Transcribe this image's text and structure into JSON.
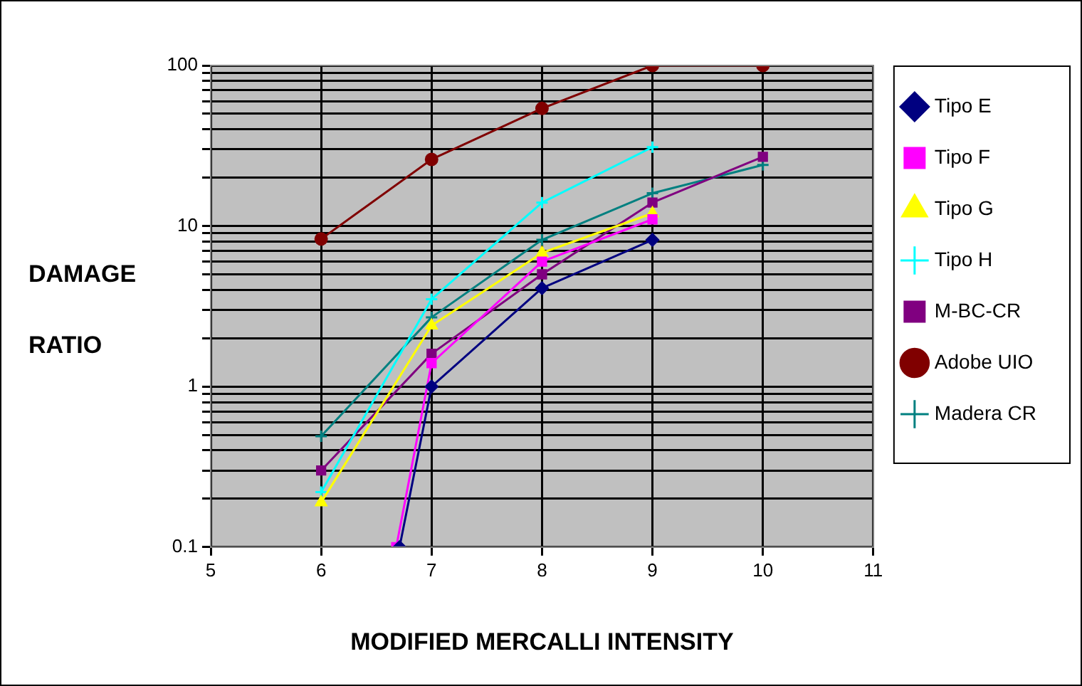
{
  "chart_data": {
    "type": "line",
    "xlabel": "MODIFIED MERCALLI INTENSITY",
    "ylabel": "DAMAGE RATIO",
    "x": [
      6,
      7,
      8,
      9,
      10
    ],
    "xlim": [
      5,
      11
    ],
    "xticks": [
      5,
      6,
      7,
      8,
      9,
      10,
      11
    ],
    "ylim": [
      0.1,
      100
    ],
    "log": true,
    "yticks": [
      0.1,
      {
        "value": 0.2,
        "label": null
      },
      {
        "value": 0.3,
        "label": null
      },
      {
        "value": 0.4,
        "label": null
      },
      {
        "value": 0.5,
        "label": null
      },
      {
        "value": 0.6,
        "label": null
      },
      {
        "value": 0.7,
        "label": null
      },
      {
        "value": 0.8,
        "label": null
      },
      {
        "value": 0.9,
        "label": null
      },
      1,
      {
        "value": 2,
        "label": null
      },
      {
        "value": 3,
        "label": null
      },
      {
        "value": 4,
        "label": null
      },
      {
        "value": 5,
        "label": null
      },
      {
        "value": 6,
        "label": null
      },
      {
        "value": 7,
        "label": null
      },
      {
        "value": 8,
        "label": null
      },
      {
        "value": 9,
        "label": null
      },
      10,
      {
        "value": 20,
        "label": null
      },
      {
        "value": 30,
        "label": null
      },
      {
        "value": 40,
        "label": null
      },
      {
        "value": 50,
        "label": null
      },
      {
        "value": 60,
        "label": null
      },
      {
        "value": 70,
        "label": null
      },
      {
        "value": 80,
        "label": null
      },
      {
        "value": 90,
        "label": null
      },
      100
    ],
    "grid": true,
    "legend": "right",
    "line_style": "solid",
    "series": [
      {
        "name": "Tipo E",
        "color": "#000080",
        "marker": "diamond",
        "x": [
          6.71,
          7,
          8,
          9
        ],
        "values": [
          0.1,
          1.0,
          4.1,
          8.2
        ]
      },
      {
        "name": "Tipo F",
        "color": "#ff00ff",
        "marker": "square",
        "x": [
          6.68,
          7,
          8,
          9
        ],
        "values": [
          0.1,
          1.4,
          6.0,
          11
        ]
      },
      {
        "name": "Tipo G",
        "color": "#ffff00",
        "marker": "triangle",
        "x": [
          6,
          7,
          8,
          9
        ],
        "values": [
          0.19,
          2.4,
          6.8,
          12
        ]
      },
      {
        "name": "Tipo H",
        "color": "#00ffff",
        "marker": "cross",
        "x": [
          6,
          7,
          8,
          9
        ],
        "values": [
          0.22,
          3.5,
          14,
          31
        ]
      },
      {
        "name": "M-BC-CR",
        "color": "#800080",
        "marker": "square",
        "values": [
          0.3,
          1.6,
          5,
          14,
          27
        ]
      },
      {
        "name": "Adobe UIO",
        "color": "#800000",
        "marker": "circle",
        "values": [
          8.3,
          26,
          54,
          100,
          100
        ]
      },
      {
        "name": "Madera CR",
        "color": "#008080",
        "marker": "cross",
        "values": [
          0.49,
          2.7,
          8.2,
          16,
          24
        ]
      }
    ]
  }
}
